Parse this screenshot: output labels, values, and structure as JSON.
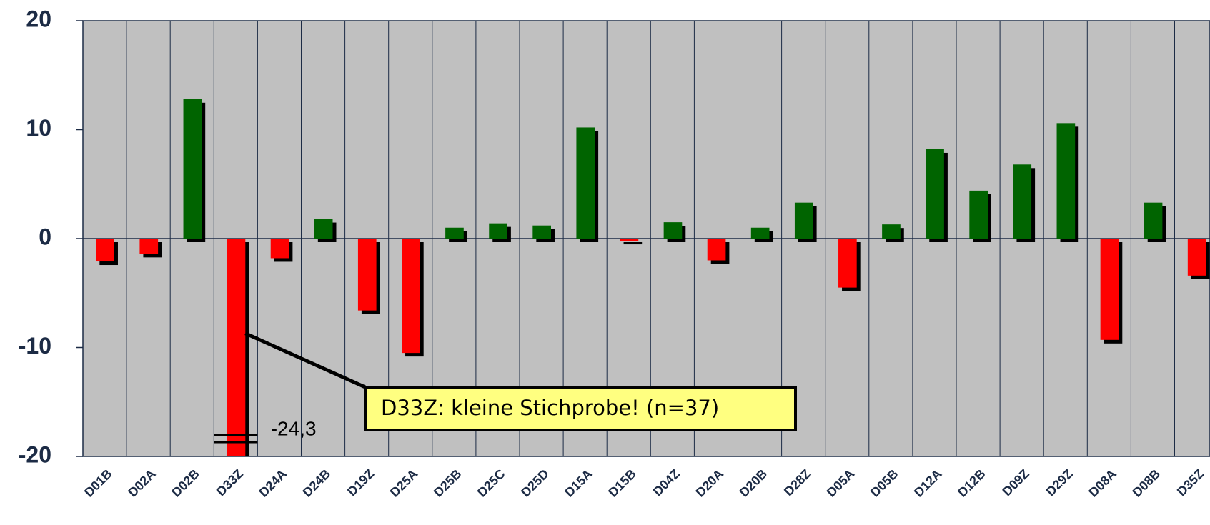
{
  "chart_data": {
    "type": "bar",
    "categories": [
      "D01B",
      "D02A",
      "D02B",
      "D33Z",
      "D24A",
      "D24B",
      "D19Z",
      "D25A",
      "D25B",
      "D25C",
      "D25D",
      "D15A",
      "D15B",
      "D04Z",
      "D20A",
      "D20B",
      "D28Z",
      "D05A",
      "D05B",
      "D12A",
      "D12B",
      "D09Z",
      "D29Z",
      "D08A",
      "D08B",
      "D35Z"
    ],
    "values": [
      -2.1,
      -1.4,
      12.8,
      -24.3,
      -1.8,
      1.8,
      -6.6,
      -10.5,
      1.0,
      1.4,
      1.2,
      10.2,
      -0.2,
      1.5,
      -2.0,
      1.0,
      3.3,
      -4.5,
      1.3,
      8.2,
      4.4,
      6.8,
      10.6,
      -9.3,
      3.3,
      -3.4
    ],
    "value_labels": [
      null,
      null,
      null,
      "-24,3",
      null,
      null,
      null,
      null,
      null,
      null,
      null,
      null,
      null,
      null,
      null,
      null,
      null,
      null,
      null,
      null,
      null,
      null,
      null,
      null,
      null,
      null
    ],
    "colors": {
      "positive": "#006400",
      "negative": "#ff0000"
    },
    "annotation": {
      "text": "D33Z: kleine Stichprobe! (n=37)",
      "category": 3
    },
    "ylim": [
      -20,
      20
    ],
    "yticks": [
      20,
      10,
      0,
      -10,
      -20
    ]
  }
}
